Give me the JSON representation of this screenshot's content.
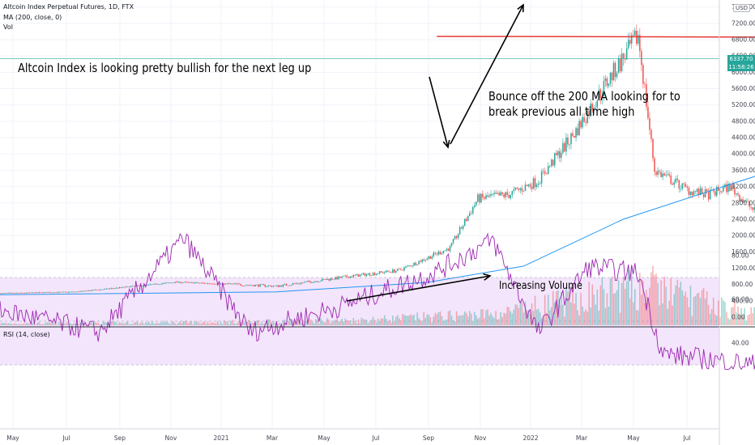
{
  "header": {
    "symbol": "Altcoin Index Perpetual Futures, 1D, FTX",
    "ma_study": "MA (200, close, 0)",
    "vol_study": "Vol",
    "rsi_study": "RSI (14, close)",
    "currency": "USD"
  },
  "annotations": {
    "headline": "Altcoin Index is looking pretty bullish for the next leg up",
    "bounce_line1": "Bounce off the 200 MA looking for to",
    "bounce_line2": "break previous all time high",
    "volume": "Increasing Volume"
  },
  "price_tags": {
    "last_price": "6337.70",
    "countdown": "11:58:26"
  },
  "colors": {
    "up": "#26a69a",
    "down": "#ef5350",
    "ma": "#2196f3",
    "rsi_line": "#9c27b0",
    "rsi_band": "#f3e5fb",
    "resistance": "#e53935",
    "price_line": "#26a69a",
    "arrow": "#000000"
  },
  "chart_data": [
    {
      "type": "candlestick",
      "x_ticks": [
        "May",
        "Jul",
        "Sep",
        "Nov",
        "2021",
        "Mar",
        "May",
        "Jul",
        "Sep",
        "Nov",
        "2022",
        "Mar",
        "May",
        "Jul"
      ],
      "y_ticks": [
        "0.00",
        "400.00",
        "800.00",
        "1200.00",
        "1600.00",
        "2000.00",
        "2400.00",
        "2800.00",
        "3200.00",
        "3600.00",
        "4000.00",
        "4400.00",
        "4800.00",
        "5200.00",
        "5600.00",
        "6000.00",
        "6400.00",
        "6800.00",
        "7200.00",
        "7600.00"
      ],
      "ylim": [
        0,
        7700
      ],
      "series": [
        {
          "kind": "price_close",
          "x": [
            "2020-04-15",
            "2020-06-01",
            "2020-08-01",
            "2020-10-01",
            "2020-11-15",
            "2020-12-15",
            "2021-01-15",
            "2021-02-01",
            "2021-02-20",
            "2021-03-10",
            "2021-04-01",
            "2021-04-20",
            "2021-05-10",
            "2021-05-20",
            "2021-06-10",
            "2021-06-22",
            "2021-07-05",
            "2021-07-20",
            "2021-08-10",
            "2021-08-20",
            "2021-09-06",
            "2021-09-21",
            "2021-10-01",
            "2021-10-20",
            "2021-11-05"
          ],
          "values": [
            580,
            620,
            860,
            760,
            1000,
            1150,
            1700,
            2900,
            3000,
            3350,
            4500,
            5700,
            6900,
            3600,
            3100,
            3000,
            3200,
            2600,
            3600,
            4900,
            5600,
            4200,
            4300,
            5600,
            6337.7
          ]
        },
        {
          "kind": "ma200",
          "name": "MA (200, close, 0)",
          "x": [
            "2020-04-15",
            "2020-10-01",
            "2021-01-01",
            "2021-03-01",
            "2021-05-01",
            "2021-07-01",
            "2021-09-01",
            "2021-10-01",
            "2021-11-05"
          ],
          "values": [
            550,
            620,
            850,
            1250,
            2400,
            3200,
            4000,
            4350,
            4550
          ]
        },
        {
          "kind": "volume",
          "x": [
            "2020-05",
            "2020-08",
            "2020-11",
            "2021-02",
            "2021-05",
            "2021-07",
            "2021-09",
            "2021-11"
          ],
          "values": [
            10,
            15,
            25,
            60,
            200,
            60,
            90,
            170
          ]
        }
      ],
      "annotations": {
        "resistance_level": 6880,
        "resistance_x": [
          "2021-01-01",
          "2022-04-30"
        ]
      }
    },
    {
      "type": "line",
      "title": "RSI (14, close)",
      "y_ticks": [
        "40.00",
        "60.00",
        "80.00"
      ],
      "ylim": [
        25,
        95
      ],
      "band": [
        30,
        70
      ],
      "series": [
        {
          "name": "RSI (14, close)",
          "x": [
            "2020-04-15",
            "2020-06-15",
            "2020-08-05",
            "2020-09-15",
            "2020-11-10",
            "2021-01-05",
            "2021-02-10",
            "2021-03-10",
            "2021-04-10",
            "2021-05-10",
            "2021-05-25",
            "2021-07-20",
            "2021-08-25",
            "2021-09-10",
            "2021-09-25",
            "2021-10-20",
            "2021-11-05"
          ],
          "values": [
            55,
            45,
            88,
            45,
            57,
            72,
            87,
            45,
            75,
            72,
            35,
            30,
            83,
            71,
            35,
            65,
            70
          ]
        }
      ]
    }
  ]
}
